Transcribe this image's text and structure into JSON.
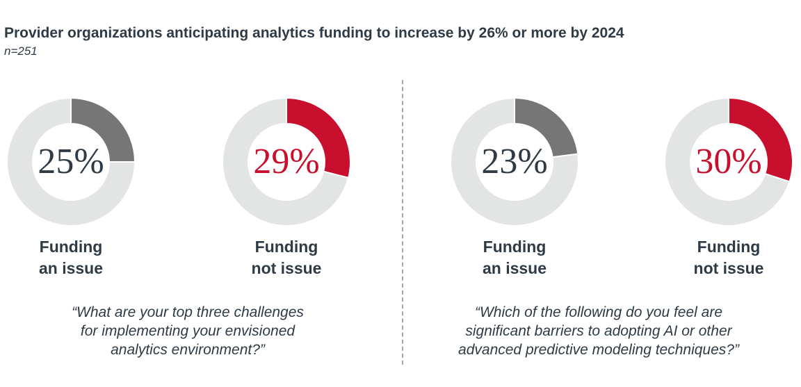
{
  "chart_data": {
    "type": "pie",
    "title": "Provider organizations anticipating analytics funding to increase by 26% or more by 2024",
    "subtitle": "n=251",
    "charts": [
      {
        "label_line1": "Funding",
        "label_line2": "an issue",
        "value": 25,
        "display": "25%",
        "color": "#767676",
        "text_color": "#2e3a46"
      },
      {
        "label_line1": "Funding",
        "label_line2": "not issue",
        "value": 29,
        "display": "29%",
        "color": "#c8102e",
        "text_color": "#c8102e"
      },
      {
        "label_line1": "Funding",
        "label_line2": "an issue",
        "value": 23,
        "display": "23%",
        "color": "#767676",
        "text_color": "#2e3a46"
      },
      {
        "label_line1": "Funding",
        "label_line2": "not issue",
        "value": 30,
        "display": "30%",
        "color": "#c8102e",
        "text_color": "#c8102e"
      }
    ],
    "remainder_color": "#e3e4e4",
    "questions": [
      {
        "line1": "“What are your top three challenges",
        "line2": "for implementing your envisioned",
        "line3": "analytics environment?”"
      },
      {
        "line1": "“Which of the following do you feel are",
        "line2": "significant barriers to adopting AI or other",
        "line3": "advanced predictive modeling techniques?”"
      }
    ]
  }
}
